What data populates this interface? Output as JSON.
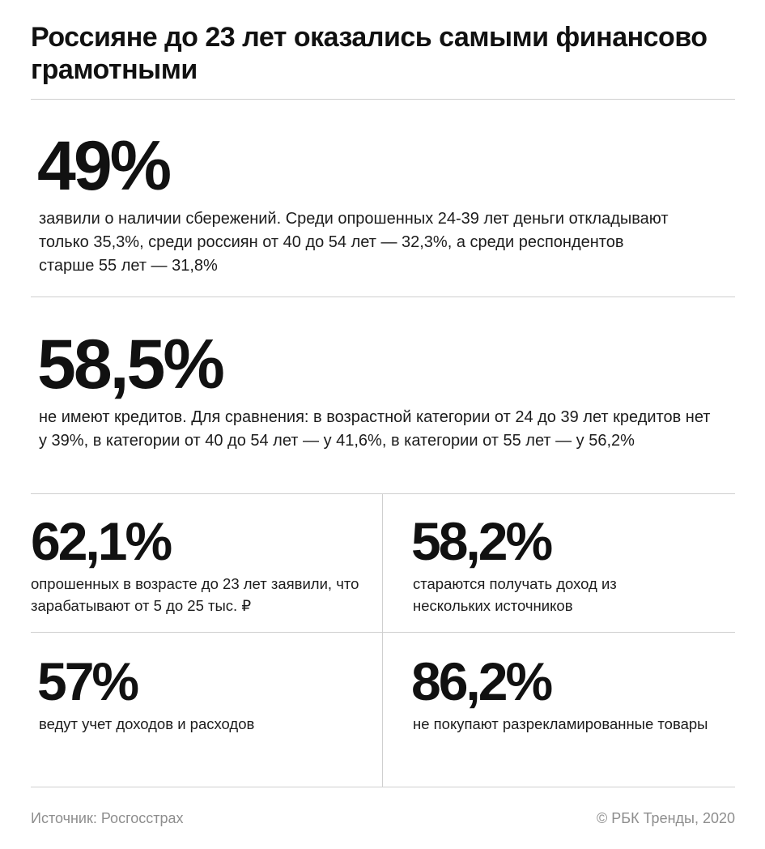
{
  "title": "Россияне до 23 лет оказались самыми финансово грамотными",
  "stats": [
    {
      "value": "49%",
      "description": "заявили о наличии сбережений. Среди опрошенных 24-39 лет деньги откладывают только 35,3%, среди россиян от 40 до 54 лет — 32,3%, а среди респондентов старше 55 лет — 31,8%"
    },
    {
      "value": "58,5%",
      "description": "не имеют кредитов. Для сравнения: в возрастной категории от 24 до 39 лет кредитов нет у 39%, в категории от 40 до 54 лет — у 41,6%, в категории от 55 лет — у 56,2%"
    },
    {
      "value": "62,1%",
      "description": "опрошенных в возрасте до 23 лет заявили, что зарабатывают от 5 до 25 тыс. ₽"
    },
    {
      "value": "58,2%",
      "description": "стараются получать доход из нескольких источников"
    },
    {
      "value": "57%",
      "description": "ведут учет доходов и расходов"
    },
    {
      "value": "86,2%",
      "description": "не покупают разрекламированные товары"
    }
  ],
  "footer": {
    "source": "Источник: Росгосстрах",
    "copyright": "© РБК Тренды, 2020"
  }
}
